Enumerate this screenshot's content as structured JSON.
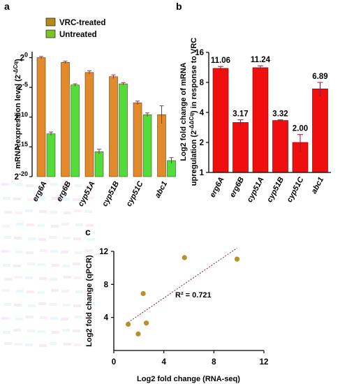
{
  "panels": {
    "a": "a",
    "b": "b",
    "c": "c"
  },
  "chart_data": [
    {
      "id": "a",
      "type": "bar",
      "categories": [
        "erg6A",
        "erg6B",
        "cyp51A",
        "cyp51B",
        "cyp51C",
        "abc1"
      ],
      "series": [
        {
          "name": "VRC-treated",
          "color": "#e08a2b",
          "values": [
            0.0,
            -0.8,
            -2.5,
            -3.2,
            -7.6,
            -9.6
          ],
          "errors": [
            0.2,
            0.2,
            0.3,
            0.3,
            0.3,
            1.5
          ]
        },
        {
          "name": "Untreated",
          "color": "#54dc3c",
          "values": [
            -12.8,
            -4.6,
            -15.8,
            -4.4,
            -9.6,
            -17.3
          ],
          "errors": [
            0.3,
            0.2,
            0.4,
            0.2,
            0.3,
            0.5
          ]
        }
      ],
      "ylim": [
        -20,
        1
      ],
      "yticks": [
        {
          "v": 0,
          "base": "2",
          "exp": "0"
        },
        {
          "v": -5,
          "base": "2",
          "exp": "-5"
        },
        {
          "v": -10,
          "base": "2",
          "exp": "-10"
        },
        {
          "v": -15,
          "base": "2",
          "exp": "-15"
        },
        {
          "v": -20,
          "base": "2",
          "exp": "-20"
        }
      ],
      "ylabel": "mRNA expression level (2",
      "ylabel_sup": "-ΔCq",
      "ylabel_end": ")",
      "legend_position": "top"
    },
    {
      "id": "b",
      "type": "bar",
      "scale": "log2",
      "categories": [
        "erg6A",
        "erg6B",
        "cyp51A",
        "cyp51B",
        "cyp51C",
        "abc1"
      ],
      "series": [
        {
          "name": "",
          "color": "#f00f0f",
          "values": [
            11.06,
            3.17,
            11.24,
            3.32,
            2.0,
            6.89
          ],
          "errors": [
            0.5,
            0.2,
            0.5,
            0.05,
            0.4,
            1.1
          ]
        }
      ],
      "data_labels": [
        "11.06",
        "3.17",
        "11.24",
        "3.32",
        "2.00",
        "6.89"
      ],
      "ylim": [
        1,
        16
      ],
      "yticks": [
        {
          "v": 1,
          "label": "1"
        },
        {
          "v": 2,
          "label": "2"
        },
        {
          "v": 4,
          "label": "4"
        },
        {
          "v": 8,
          "label": "8"
        },
        {
          "v": 16,
          "label": "16"
        }
      ],
      "ylabel_line1": "Log2 fold change of mRNA",
      "ylabel_line2a": "upregulation (2",
      "ylabel_sup": "-ΔΔCq",
      "ylabel_line2b": ") in response to VRC"
    },
    {
      "id": "c",
      "type": "scatter",
      "points": [
        {
          "x": 1.15,
          "y": 3.17
        },
        {
          "x": 1.95,
          "y": 2.0
        },
        {
          "x": 2.35,
          "y": 6.89
        },
        {
          "x": 2.6,
          "y": 3.32
        },
        {
          "x": 5.65,
          "y": 11.24
        },
        {
          "x": 9.85,
          "y": 11.06
        }
      ],
      "point_color": "#b8902a",
      "trendline": {
        "x": [
          1.15,
          9.85
        ],
        "y": [
          3.4,
          12.4
        ],
        "style": "dotted",
        "color": "#8b1a3a"
      },
      "annotation": "R² = 0.721",
      "xlim": [
        0,
        12
      ],
      "ylim": [
        0,
        12
      ],
      "xticks": [
        "0",
        "4",
        "8",
        "12"
      ],
      "yticks": [
        "4",
        "8",
        "12"
      ],
      "xlabel": "Log2 fold change (RNA-seq)",
      "ylabel": "Log2 fold change (qPCR)"
    }
  ]
}
